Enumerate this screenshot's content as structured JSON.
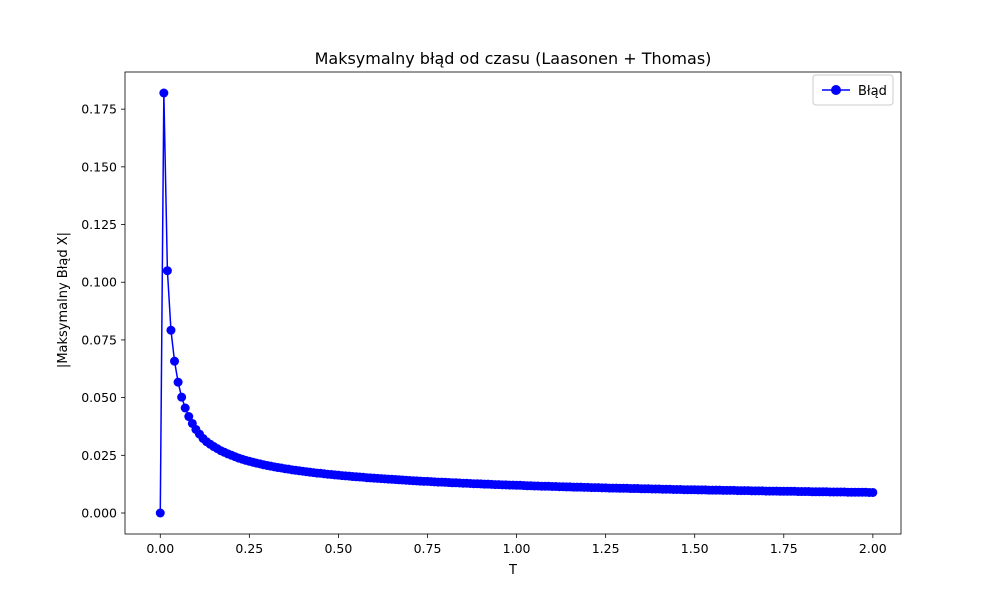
{
  "chart_data": {
    "type": "line",
    "title": "Maksymalny błąd od czasu (Laasonen + Thomas)",
    "xlabel": "T",
    "ylabel": "|Maksymalny Błąd X|",
    "xlim": [
      -0.099,
      2.079
    ],
    "ylim": [
      -0.0091,
      0.1911
    ],
    "x_ticks": [
      0.0,
      0.25,
      0.5,
      0.75,
      1.0,
      1.25,
      1.5,
      1.75,
      2.0
    ],
    "x_tick_labels": [
      "0.00",
      "0.25",
      "0.50",
      "0.75",
      "1.00",
      "1.25",
      "1.50",
      "1.75",
      "2.00"
    ],
    "y_ticks": [
      0.0,
      0.025,
      0.05,
      0.075,
      0.1,
      0.125,
      0.15,
      0.175
    ],
    "y_tick_labels": [
      "0.000",
      "0.025",
      "0.050",
      "0.075",
      "0.100",
      "0.125",
      "0.150",
      "0.175"
    ],
    "grid": false,
    "legend_position": "top-right",
    "series": [
      {
        "name": "Błąd",
        "color": "#0000ff",
        "marker": "circle",
        "x_start": 0.0,
        "x_step": 0.01,
        "values": [
          0.0,
          0.182,
          0.105,
          0.0792,
          0.0658,
          0.0567,
          0.0502,
          0.0455,
          0.0418,
          0.0388,
          0.0362,
          0.0342,
          0.0323,
          0.0309,
          0.0298,
          0.0288,
          0.0279,
          0.027,
          0.0263,
          0.0256,
          0.025,
          0.0244,
          0.0238,
          0.0233,
          0.0228,
          0.0224,
          0.022,
          0.0216,
          0.0213,
          0.0209,
          0.0206,
          0.0203,
          0.02,
          0.0197,
          0.0195,
          0.0192,
          0.019,
          0.0187,
          0.0185,
          0.0183,
          0.0181,
          0.0179,
          0.0177,
          0.0175,
          0.0173,
          0.0172,
          0.017,
          0.0168,
          0.0167,
          0.0165,
          0.0164,
          0.0162,
          0.0161,
          0.016,
          0.0158,
          0.0157,
          0.0156,
          0.0155,
          0.0153,
          0.0152,
          0.0151,
          0.015,
          0.0149,
          0.0148,
          0.0147,
          0.0146,
          0.0145,
          0.0144,
          0.0143,
          0.0142,
          0.0141,
          0.014,
          0.0139,
          0.0138,
          0.0137,
          0.0137,
          0.0136,
          0.0135,
          0.0134,
          0.0134,
          0.0133,
          0.0132,
          0.0131,
          0.0131,
          0.013,
          0.0129,
          0.0129,
          0.0128,
          0.0127,
          0.0127,
          0.0126,
          0.0125,
          0.0125,
          0.0124,
          0.0123,
          0.0123,
          0.0122,
          0.0122,
          0.0121,
          0.0121,
          0.012,
          0.012,
          0.0119,
          0.0118,
          0.0118,
          0.0117,
          0.0117,
          0.0116,
          0.0116,
          0.0116,
          0.0115,
          0.0115,
          0.0114,
          0.0114,
          0.0113,
          0.0113,
          0.0112,
          0.0112,
          0.0112,
          0.0111,
          0.0111,
          0.011,
          0.011,
          0.011,
          0.0109,
          0.0109,
          0.0108,
          0.0108,
          0.0108,
          0.0107,
          0.0107,
          0.0107,
          0.0106,
          0.0106,
          0.0106,
          0.0105,
          0.0105,
          0.0105,
          0.0104,
          0.0104,
          0.0104,
          0.0103,
          0.0103,
          0.0103,
          0.0102,
          0.0102,
          0.0102,
          0.0101,
          0.0101,
          0.0101,
          0.0101,
          0.01,
          0.01,
          0.01,
          0.0099,
          0.0099,
          0.0099,
          0.0099,
          0.0098,
          0.0098,
          0.0098,
          0.0098,
          0.0097,
          0.0097,
          0.0097,
          0.0097,
          0.0096,
          0.0096,
          0.0096,
          0.0096,
          0.0095,
          0.0095,
          0.0095,
          0.0095,
          0.0094,
          0.0094,
          0.0094,
          0.0094,
          0.0094,
          0.0093,
          0.0093,
          0.0093,
          0.0093,
          0.0092,
          0.0092,
          0.0092,
          0.0092,
          0.0092,
          0.0091,
          0.0091,
          0.0091,
          0.0091,
          0.0091,
          0.009,
          0.009,
          0.009,
          0.009,
          0.009,
          0.009,
          0.0089,
          0.0089
        ]
      }
    ]
  }
}
